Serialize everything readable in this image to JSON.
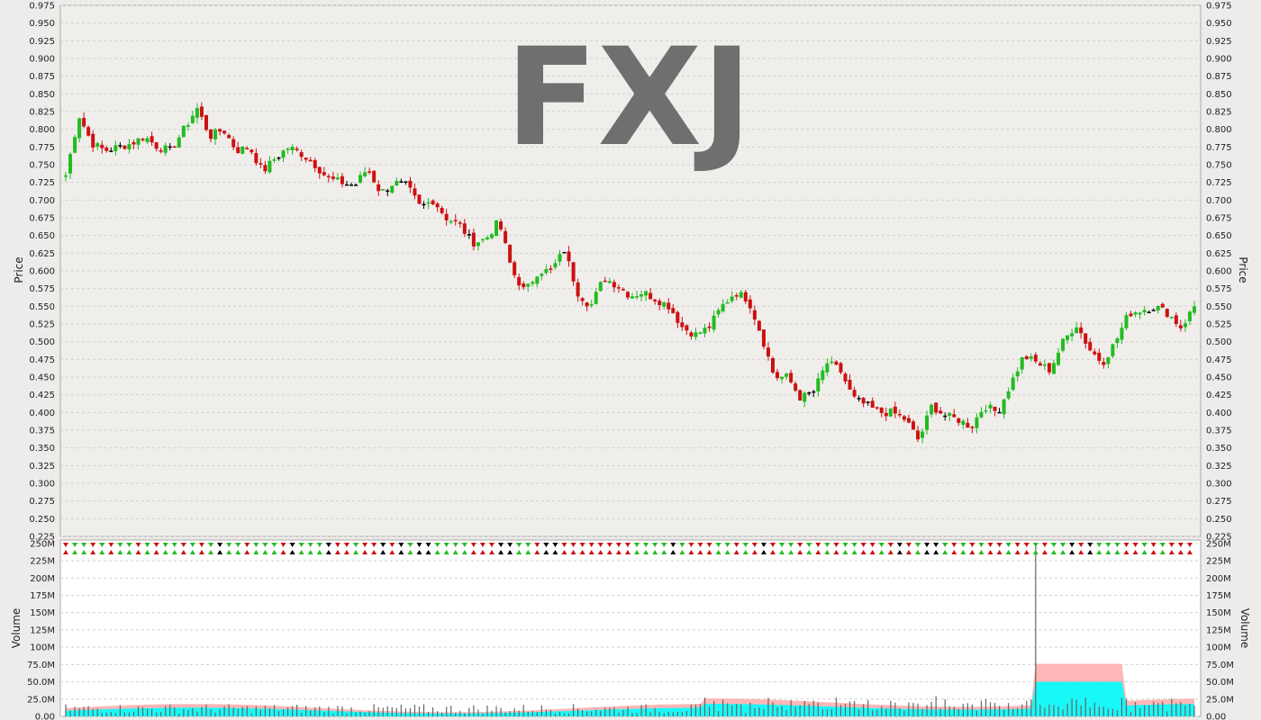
{
  "symbol": "FXJ",
  "colors": {
    "up": "#22bb22",
    "down": "#cc1111",
    "neutral": "#000000",
    "plot_bg": "#f0eeeb",
    "volume_bg": "#ffffff",
    "grid": "#d0d0d0",
    "vol_avg_fill": "#ffaaaa",
    "vol_band_fill": "#00ffff"
  },
  "chart_data": [
    {
      "type": "candlestick",
      "ylabel": "Price",
      "ylim": [
        0.225,
        0.975
      ],
      "yticks": [
        "0.225",
        "0.250",
        "0.275",
        "0.300",
        "0.325",
        "0.350",
        "0.375",
        "0.400",
        "0.425",
        "0.450",
        "0.475",
        "0.500",
        "0.525",
        "0.550",
        "0.575",
        "0.600",
        "0.625",
        "0.650",
        "0.675",
        "0.700",
        "0.725",
        "0.750",
        "0.775",
        "0.800",
        "0.825",
        "0.850",
        "0.875",
        "0.900",
        "0.925",
        "0.950",
        "0.975"
      ],
      "grid": true,
      "close_series": [
        0.735,
        0.82,
        0.78,
        0.77,
        0.775,
        0.78,
        0.79,
        0.775,
        0.77,
        0.8,
        0.83,
        0.79,
        0.8,
        0.77,
        0.775,
        0.74,
        0.76,
        0.775,
        0.765,
        0.75,
        0.73,
        0.725,
        0.72,
        0.745,
        0.71,
        0.725,
        0.72,
        0.69,
        0.7,
        0.675,
        0.665,
        0.64,
        0.645,
        0.67,
        0.6,
        0.57,
        0.6,
        0.6,
        0.63,
        0.57,
        0.55,
        0.59,
        0.58,
        0.565,
        0.57,
        0.56,
        0.55,
        0.52,
        0.51,
        0.52,
        0.55,
        0.57,
        0.56,
        0.51,
        0.45,
        0.45,
        0.42,
        0.43,
        0.47,
        0.46,
        0.42,
        0.41,
        0.4,
        0.4,
        0.39,
        0.36,
        0.41,
        0.395,
        0.39,
        0.38,
        0.41,
        0.4,
        0.44,
        0.48,
        0.47,
        0.46,
        0.5,
        0.525,
        0.49,
        0.47,
        0.5,
        0.54,
        0.545,
        0.55,
        0.54,
        0.52,
        0.55
      ]
    },
    {
      "type": "bar",
      "ylabel": "Volume",
      "ylim": [
        0,
        255000000
      ],
      "yticks": [
        "0.00",
        "25.0M",
        "50.0M",
        "75.0M",
        "100M",
        "125M",
        "150M",
        "175M",
        "200M",
        "225M",
        "250M"
      ],
      "grid": true,
      "spike": {
        "value": 250000000
      },
      "avg_band_high": 76000000,
      "avg_band_mid": 50000000
    }
  ]
}
